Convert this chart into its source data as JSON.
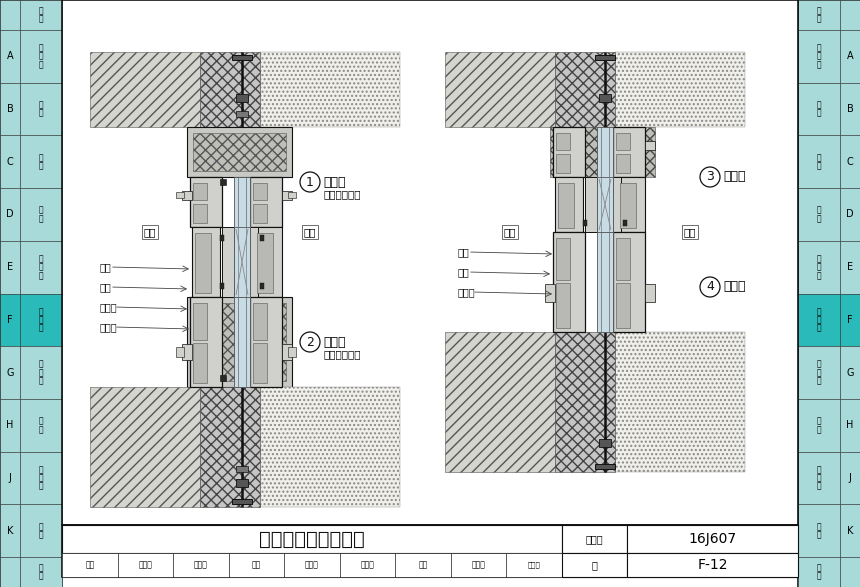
{
  "title": "聚氨酯窗安装节点图",
  "fig_no_label": "图集号",
  "fig_id": "16J607",
  "page_label": "页",
  "page_no": "F-12",
  "sidebar_items": [
    {
      "key": "",
      "label": "说\n明"
    },
    {
      "key": "A",
      "label": "铝\n合\n金"
    },
    {
      "key": "B",
      "label": "塑\n料"
    },
    {
      "key": "C",
      "label": "铝\n塑"
    },
    {
      "key": "D",
      "label": "铝\n木"
    },
    {
      "key": "E",
      "label": "木\n铝\n铝"
    },
    {
      "key": "F",
      "label": "聚\n氨\n酯"
    },
    {
      "key": "G",
      "label": "玻\n璃\n钢"
    },
    {
      "key": "H",
      "label": "木\n塑"
    },
    {
      "key": "J",
      "label": "一\n体\n化"
    },
    {
      "key": "K",
      "label": "彩\n钢"
    },
    {
      "key": "",
      "label": "附\n录"
    }
  ],
  "active_key": "F",
  "diag1_num": "1",
  "diag1_title": "窗上口",
  "diag1_sub": "（有钢附框）",
  "diag2_num": "2",
  "diag2_title": "窗下口",
  "diag2_sub": "（有钢附框）",
  "diag3_num": "3",
  "diag3_title": "窗上口",
  "diag4_num": "4",
  "diag4_title": "窗下口",
  "left_outside": "室外",
  "left_inside": "室内",
  "right_outside": "室外",
  "right_inside": "室内",
  "left_parts": [
    "窗扇",
    "窗框",
    "钢附框",
    "密封胶"
  ],
  "right_parts": [
    "窗扇",
    "窗框",
    "密封胶"
  ],
  "bottom_cells": [
    "审核",
    "谭国治",
    "沈凤法",
    "校对",
    "李文东",
    "季久存",
    "设计",
    "鱼贵曾"
  ],
  "bg": "#ffffff",
  "sidebar_bg": "#a8dada",
  "active_bg": "#2bbaba",
  "lc": "#111111",
  "hatch_concrete": "////",
  "hatch_fill": "xxxx",
  "hatch_dots": "....",
  "fc_concrete": "#d5d5d0",
  "fc_insul": "#c5c5c5",
  "fc_dots": "#f0efea",
  "fc_frame": "#d0d0cc",
  "fc_glass": "#c8dce6",
  "fc_dark": "#222222",
  "fc_seal": "#555550"
}
